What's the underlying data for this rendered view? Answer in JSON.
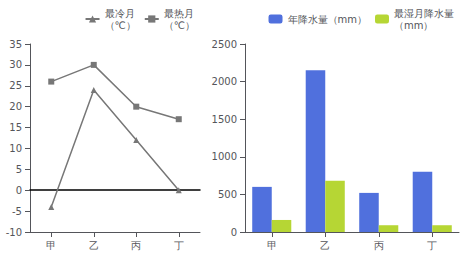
{
  "chart_data": [
    {
      "type": "line",
      "categories": [
        "甲",
        "乙",
        "丙",
        "丁"
      ],
      "series": [
        {
          "name": "最冷月\n（℃）",
          "color": "#777777",
          "marker": "triangle",
          "values": [
            -4,
            24,
            12,
            0
          ]
        },
        {
          "name": "最热月\n（℃）",
          "color": "#777777",
          "marker": "square",
          "values": [
            26,
            30,
            20,
            17
          ]
        }
      ],
      "ylim": [
        -10,
        35
      ],
      "yticks": [
        -10,
        -5,
        0,
        5,
        10,
        15,
        20,
        25,
        30,
        35
      ],
      "grid": false,
      "legend": "upper right"
    },
    {
      "type": "bar",
      "categories": [
        "甲",
        "乙",
        "丙",
        "丁"
      ],
      "series": [
        {
          "name": "年降水量（mm）",
          "values": [
            600,
            2150,
            520,
            800
          ]
        },
        {
          "name": "最湿月降水量\n（mm）",
          "values": [
            160,
            680,
            90,
            90
          ]
        }
      ],
      "ylim": [
        0,
        2500
      ],
      "yticks": [
        0,
        500,
        1000,
        1500,
        2000,
        2500
      ],
      "grid": false,
      "legend": "upper right"
    }
  ]
}
